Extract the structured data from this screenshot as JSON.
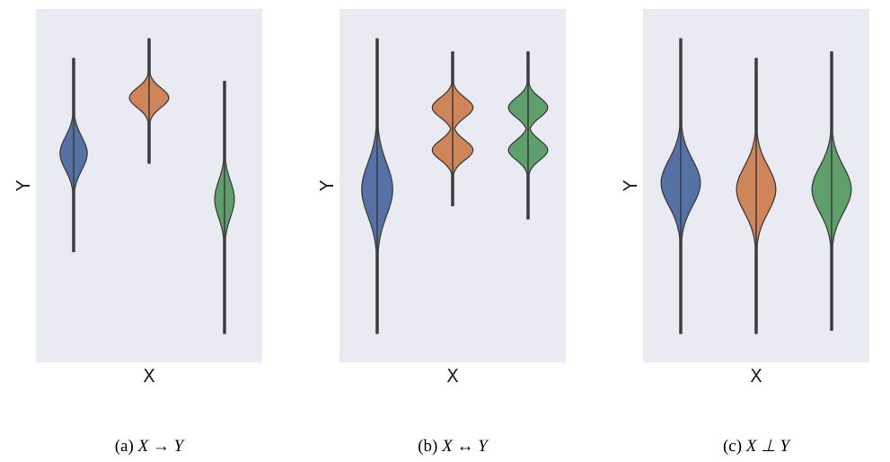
{
  "chart_data": [
    {
      "type": "violin",
      "xlabel": "X",
      "ylabel": "Y",
      "caption": "(a) X → Y",
      "caption_parts": {
        "prefix": "(a) ",
        "math": "X → Y"
      },
      "grid": false,
      "ylim": [
        0,
        100
      ],
      "violins": [
        {
          "color": "#5572a7",
          "min": 30,
          "max": 89,
          "peaks": [
            {
              "y": 60,
              "width": 0.18,
              "sd": 5
            }
          ]
        },
        {
          "color": "#cf8559",
          "min": 57,
          "max": 95,
          "peaks": [
            {
              "y": 77,
              "width": 0.26,
              "sd": 3
            }
          ]
        },
        {
          "color": "#5e9f6c",
          "min": 5,
          "max": 82,
          "peaks": [
            {
              "y": 46,
              "width": 0.13,
              "sd": 5.5
            }
          ]
        }
      ]
    },
    {
      "type": "violin",
      "xlabel": "X",
      "ylabel": "Y",
      "caption": "(b) X ↔ Y",
      "caption_parts": {
        "prefix": "(b) ",
        "math": "X ↔ Y"
      },
      "grid": false,
      "ylim": [
        0,
        100
      ],
      "violins": [
        {
          "color": "#5572a7",
          "min": 5,
          "max": 95,
          "peaks": [
            {
              "y": 49,
              "width": 0.205,
              "sd": 8
            }
          ]
        },
        {
          "color": "#cf8559",
          "min": 44,
          "max": 91,
          "peaks": [
            {
              "y": 74,
              "width": 0.27,
              "sd": 3
            },
            {
              "y": 61,
              "width": 0.27,
              "sd": 3
            }
          ]
        },
        {
          "color": "#5e9f6c",
          "min": 40,
          "max": 91,
          "peaks": [
            {
              "y": 74,
              "width": 0.26,
              "sd": 3
            },
            {
              "y": 61,
              "width": 0.26,
              "sd": 3
            }
          ]
        }
      ]
    },
    {
      "type": "violin",
      "xlabel": "X",
      "ylabel": "Y",
      "caption": "(c) X ⊥ Y",
      "caption_parts": {
        "prefix": "(c) ",
        "math": "X ⊥ Y"
      },
      "grid": false,
      "ylim": [
        0,
        100
      ],
      "violins": [
        {
          "color": "#5572a7",
          "min": 5,
          "max": 95,
          "peaks": [
            {
              "y": 51,
              "width": 0.26,
              "sd": 7
            }
          ]
        },
        {
          "color": "#cf8559",
          "min": 5,
          "max": 89,
          "peaks": [
            {
              "y": 49,
              "width": 0.26,
              "sd": 7
            }
          ]
        },
        {
          "color": "#5e9f6c",
          "min": 6,
          "max": 91,
          "peaks": [
            {
              "y": 49,
              "width": 0.26,
              "sd": 7
            }
          ]
        }
      ]
    }
  ],
  "style": {
    "panel_bg": "#eaeaf2",
    "outline": "#3d3d3d"
  }
}
